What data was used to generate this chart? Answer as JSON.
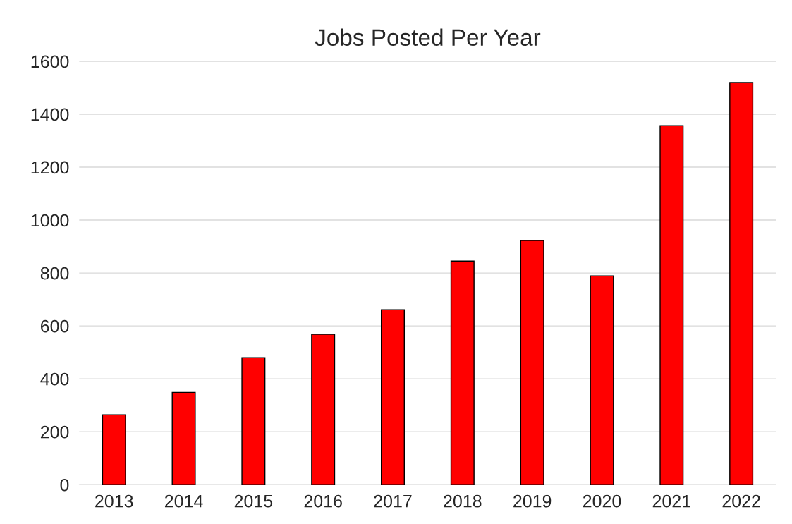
{
  "chart_data": {
    "type": "bar",
    "title": "Jobs Posted Per Year",
    "categories": [
      "2013",
      "2014",
      "2015",
      "2016",
      "2017",
      "2018",
      "2019",
      "2020",
      "2021",
      "2022"
    ],
    "values": [
      264,
      349,
      480,
      568,
      661,
      845,
      923,
      789,
      1357,
      1520
    ],
    "color": "#ff0000",
    "ylim": [
      0,
      1600
    ],
    "yticks": [
      0,
      200,
      400,
      600,
      800,
      1000,
      1200,
      1400,
      1600
    ],
    "grid": "y"
  }
}
